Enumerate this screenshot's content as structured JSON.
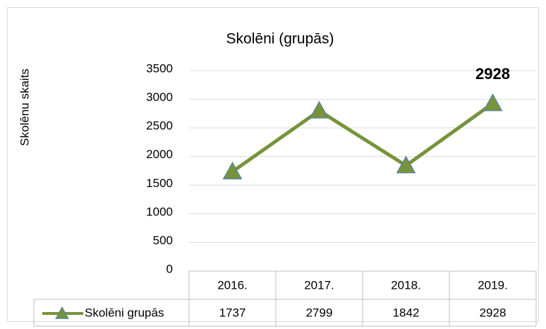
{
  "chart_data": {
    "type": "line",
    "title": "Skolēni (grupās)",
    "y_label": "Skolēnu skaits",
    "categories": [
      "2016.",
      "2017.",
      "2018.",
      "2019."
    ],
    "series": [
      {
        "name": "Skolēni grupās",
        "color": "#77933c",
        "marker_color": "#4a7ebb",
        "values": [
          1737,
          2799,
          1842,
          2928
        ]
      }
    ],
    "ylim": [
      0,
      3500
    ],
    "yticks": [
      0,
      500,
      1000,
      1500,
      2000,
      2500,
      3000,
      3500
    ],
    "grid": true
  }
}
